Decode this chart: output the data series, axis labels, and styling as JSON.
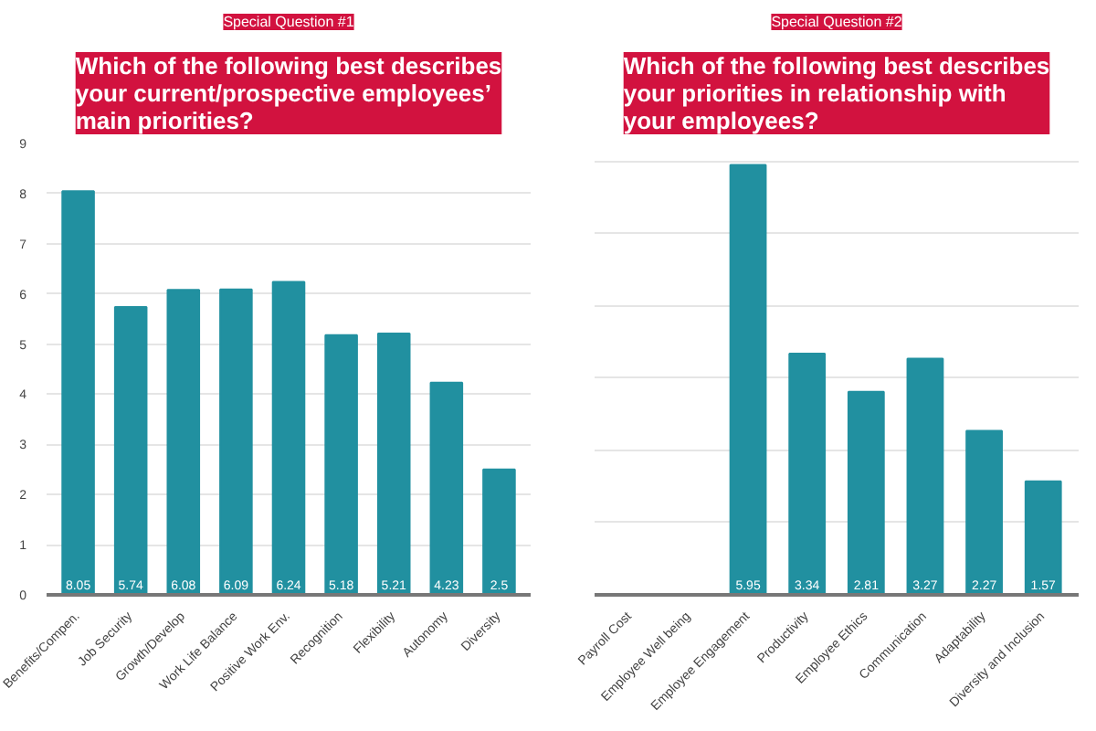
{
  "chart_data": [
    {
      "type": "bar",
      "subtitle": "Special Question #1",
      "title": "Which of the following best describes your current/prospective employees’ main priorities?",
      "categories": [
        "Benefits/Compen.",
        "Job Security",
        "Growth/Develop",
        "Work Life Balance",
        "Positive Work Env.",
        "Recognition",
        "Flexibility",
        "Autonomy",
        "Diversity"
      ],
      "values": [
        8.05,
        5.74,
        6.08,
        6.09,
        6.24,
        5.18,
        5.21,
        4.23,
        2.5
      ],
      "color": "#2190a0",
      "ylim": [
        0,
        9
      ],
      "yticks": [
        0,
        1,
        2,
        3,
        4,
        5,
        6,
        7,
        8,
        9
      ],
      "grid": "y",
      "data_labels": true
    },
    {
      "type": "bar",
      "subtitle": "Special Question #2",
      "title": "Which of the following best describes your priorities in relationship with your employees?",
      "categories": [
        "Payroll Cost",
        "Employee Well being",
        "Employee Engagement",
        "Productivity",
        "Employee Ethics",
        "Communication",
        "Adaptability",
        "Diversity and Inclusion"
      ],
      "values": [
        null,
        null,
        5.95,
        3.34,
        2.81,
        3.27,
        2.27,
        1.57
      ],
      "color": "#2190a0",
      "grid": "y",
      "tick_labels": "x",
      "data_labels": true
    }
  ]
}
